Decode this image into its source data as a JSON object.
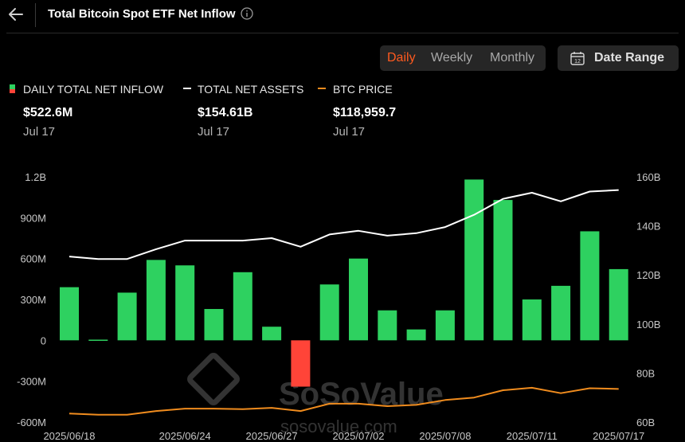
{
  "header": {
    "title": "Total Bitcoin Spot ETF Net Inflow"
  },
  "range_tabs": [
    {
      "label": "Daily",
      "active": true
    },
    {
      "label": "Weekly",
      "active": false
    },
    {
      "label": "Monthly",
      "active": false
    }
  ],
  "date_range": {
    "label": "Date Range",
    "calendar_day": "12"
  },
  "legend": [
    {
      "label": "DAILY TOTAL NET INFLOW",
      "value": "$522.6M",
      "date": "Jul 17",
      "colors": [
        "#2ed160",
        "#ff4438"
      ]
    },
    {
      "label": "TOTAL NET ASSETS",
      "value": "$154.61B",
      "date": "Jul 17",
      "color": "#ffffff"
    },
    {
      "label": "BTC PRICE",
      "value": "$118,959.7",
      "date": "Jul 17",
      "color": "#f08c1e"
    }
  ],
  "watermark": {
    "brand": "SoSoValue",
    "url": "sosovalue.com"
  },
  "chart_data": {
    "type": "bar+line",
    "x_tick_labels": [
      "2025/06/18",
      "2025/06/24",
      "2025/06/27",
      "2025/07/02",
      "2025/07/08",
      "2025/07/11",
      "2025/07/17"
    ],
    "x_tick_indices": [
      0,
      4,
      7,
      10,
      13,
      16,
      19
    ],
    "left_axis": {
      "ticks": [
        "1.2B",
        "900M",
        "600M",
        "300M",
        "0",
        "-300M",
        "-600M"
      ],
      "tick_values": [
        1200,
        900,
        600,
        300,
        0,
        -300,
        -600
      ],
      "range": [
        -600,
        1200
      ],
      "unit": "M USD"
    },
    "right_axis": {
      "ticks": [
        "160B",
        "140B",
        "120B",
        "100B",
        "80B",
        "60B"
      ],
      "tick_values": [
        160,
        140,
        120,
        100,
        80,
        60
      ],
      "range": [
        60,
        160
      ],
      "unit": "B USD"
    },
    "series": [
      {
        "name": "DAILY TOTAL NET INFLOW",
        "kind": "bar",
        "axis": "left",
        "values": [
          390,
          5,
          350,
          590,
          550,
          230,
          500,
          100,
          -340,
          410,
          600,
          220,
          80,
          220,
          1180,
          1030,
          300,
          400,
          800,
          522.6
        ],
        "positive_color": "#2ed160",
        "negative_color": "#ff4438"
      },
      {
        "name": "TOTAL NET ASSETS",
        "kind": "line",
        "axis": "right",
        "color": "#ffffff",
        "values": [
          127.5,
          126.5,
          126.5,
          130.5,
          134,
          134,
          134,
          135,
          131.5,
          136.5,
          138,
          136,
          137,
          139.5,
          144.5,
          151,
          153.5,
          150,
          154,
          154.61
        ]
      },
      {
        "name": "BTC PRICE",
        "kind": "line",
        "axis": "right",
        "color": "#f08c1e",
        "values": [
          63.5,
          63,
          63,
          64.5,
          65.5,
          65.5,
          65.3,
          65.8,
          64.5,
          67.5,
          67.5,
          66.5,
          67,
          69,
          70,
          73,
          74,
          71.8,
          73.8,
          73.5
        ]
      }
    ],
    "grid": false,
    "legend_position": "top-left"
  }
}
